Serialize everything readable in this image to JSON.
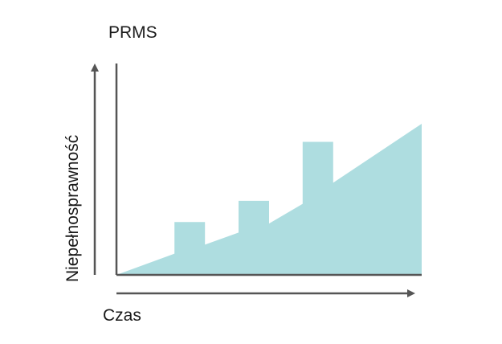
{
  "chart_data": {
    "type": "area",
    "title": "PRMS",
    "xlabel": "Czas",
    "ylabel": "Niepełnosprawność",
    "x_ticks": "none",
    "y_ticks": "none",
    "grid": false,
    "legend": "none",
    "xlim": [
      0,
      100
    ],
    "ylim": [
      0,
      100
    ],
    "series": [
      {
        "x": [
          0,
          19,
          19,
          29,
          29,
          40,
          40,
          50,
          50,
          61,
          61,
          71,
          71,
          100
        ],
        "y": [
          0,
          14,
          35,
          35,
          20,
          28,
          49,
          49,
          34,
          47,
          88,
          88,
          61,
          100
        ]
      }
    ],
    "colors": {
      "fill": "#aedde0",
      "axis": "#555555"
    }
  }
}
